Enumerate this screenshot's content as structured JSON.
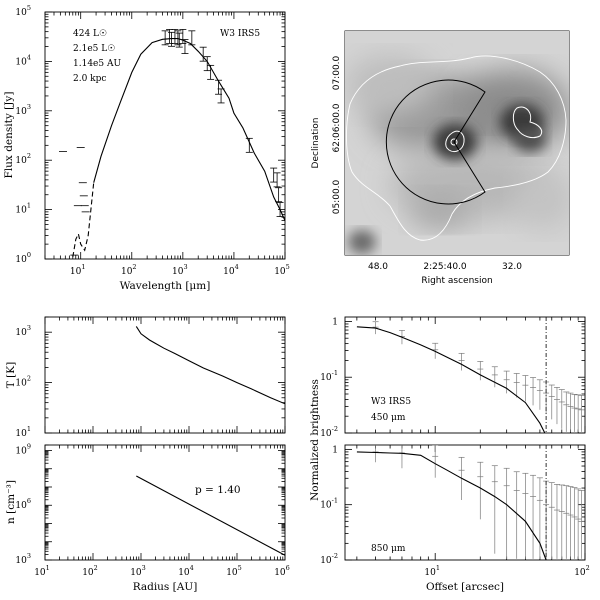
{
  "chart_data": [
    {
      "type": "line",
      "id": "sed",
      "title": "",
      "xlabel": "Wavelength [μm]",
      "ylabel": "Flux density [Jy]",
      "xscale": "log",
      "yscale": "log",
      "xlim": [
        2,
        100000
      ],
      "ylim": [
        1,
        100000
      ],
      "xticks": [
        10,
        100,
        1000,
        10000,
        100000
      ],
      "yticks": [
        1,
        10,
        100,
        1000,
        10000,
        100000
      ],
      "series": [
        {
          "style": "solid-dashed-model",
          "x": [
            7,
            8,
            9,
            10,
            12,
            14,
            18,
            25,
            40,
            60,
            100,
            150,
            250,
            400,
            600,
            800,
            1000,
            1400,
            2000,
            3000,
            5000,
            8000,
            10000,
            15000,
            25000,
            40000,
            60000,
            80000,
            100000
          ],
          "y": [
            1.1,
            2.5,
            3.2,
            2,
            1.5,
            3,
            35,
            120,
            500,
            1500,
            6000,
            14000,
            24000,
            28000,
            29000,
            29000,
            27000,
            23000,
            16000,
            10000,
            4000,
            1800,
            900,
            450,
            140,
            60,
            18,
            10,
            6
          ]
        }
      ],
      "errorbar_points": [
        {
          "x": 450,
          "y": 30000
        },
        {
          "x": 550,
          "y": 32000
        },
        {
          "x": 600,
          "y": 28000
        },
        {
          "x": 700,
          "y": 32000
        },
        {
          "x": 800,
          "y": 30000
        },
        {
          "x": 850,
          "y": 27000
        },
        {
          "x": 1000,
          "y": 32000
        },
        {
          "x": 1100,
          "y": 20000
        },
        {
          "x": 1500,
          "y": 30000
        },
        {
          "x": 2500,
          "y": 14000
        },
        {
          "x": 3000,
          "y": 9000
        },
        {
          "x": 3500,
          "y": 6000
        },
        {
          "x": 5000,
          "y": 3000
        },
        {
          "x": 5600,
          "y": 2000
        },
        {
          "x": 20000,
          "y": 200
        },
        {
          "x": 60000,
          "y": 50
        },
        {
          "x": 70000,
          "y": 40
        },
        {
          "x": 75000,
          "y": 20
        },
        {
          "x": 80000,
          "y": 10
        }
      ],
      "dash_points": [
        {
          "x": 4.5,
          "y": 150
        },
        {
          "x": 7.5,
          "y": 1.2
        },
        {
          "x": 8.8,
          "y": 12
        },
        {
          "x": 10,
          "y": 180
        },
        {
          "x": 11,
          "y": 35
        },
        {
          "x": 11.5,
          "y": 19
        },
        {
          "x": 12,
          "y": 12
        },
        {
          "x": 12.5,
          "y": 9
        }
      ]
    },
    {
      "type": "heatmap",
      "id": "map",
      "title": "",
      "xlabel": "Right ascension",
      "ylabel": "Declination",
      "xtick_labels": [
        "48.0",
        "2:25:40.0",
        "32.0"
      ],
      "ytick_labels": [
        "05:00.0",
        "62:06:00.0",
        "07:00.0"
      ],
      "grid": false
    },
    {
      "type": "line",
      "id": "temperature",
      "title": "",
      "xlabel": "",
      "ylabel": "T [K]",
      "xscale": "log",
      "yscale": "log",
      "xlim": [
        10,
        1000000
      ],
      "ylim": [
        10,
        2000
      ],
      "yticks": [
        10,
        100,
        1000
      ],
      "series": [
        {
          "x": [
            800,
            1000,
            1500,
            2000,
            3000,
            5000,
            10000,
            20000,
            50000,
            100000,
            200000,
            500000,
            1000000
          ],
          "y": [
            1300,
            930,
            700,
            600,
            480,
            380,
            270,
            195,
            135,
            100,
            75,
            50,
            38
          ]
        }
      ]
    },
    {
      "type": "line",
      "id": "density",
      "title": "",
      "xlabel": "Radius [AU]",
      "ylabel": "n [cm⁻³]",
      "xscale": "log",
      "yscale": "log",
      "xlim": [
        10,
        1000000
      ],
      "ylim": [
        1000,
        2000000000
      ],
      "xticks": [
        10,
        100,
        1000,
        10000,
        100000,
        1000000
      ],
      "yticks": [
        1000,
        1000000,
        1000000000
      ],
      "annotation": "p = 1.40",
      "series": [
        {
          "x": [
            800,
            1000000
          ],
          "y": [
            40000000,
            1800
          ]
        }
      ]
    },
    {
      "type": "line",
      "id": "radial_450",
      "title": "",
      "xlabel": "",
      "ylabel": "Normalized brightness",
      "xscale": "log",
      "yscale": "log",
      "xlim": [
        2.5,
        100
      ],
      "ylim": [
        0.01,
        1.2
      ],
      "yticks": [
        0.01,
        0.1,
        1
      ],
      "source_label": "W3 IRS5",
      "band_label": "450 μm",
      "vline_x": 55,
      "series": [
        {
          "name": "model",
          "x": [
            3,
            4,
            5,
            6,
            8,
            10,
            15,
            20,
            30,
            40,
            50,
            55
          ],
          "y": [
            0.8,
            0.76,
            0.63,
            0.52,
            0.38,
            0.29,
            0.17,
            0.11,
            0.063,
            0.035,
            0.015,
            0.009
          ]
        },
        {
          "name": "observed",
          "x": [
            4,
            6,
            10,
            15,
            20,
            25,
            30,
            35,
            40,
            45,
            50,
            55,
            60,
            65,
            70,
            75,
            80,
            85,
            90,
            95
          ],
          "y": [
            0.79,
            0.54,
            0.31,
            0.2,
            0.14,
            0.11,
            0.09,
            0.08,
            0.072,
            0.065,
            0.058,
            0.052,
            0.045,
            0.04,
            0.036,
            0.032,
            0.03,
            0.028,
            0.027,
            0.026
          ]
        }
      ]
    },
    {
      "type": "line",
      "id": "radial_850",
      "title": "",
      "xlabel": "Offset [arcsec]",
      "ylabel": "",
      "xscale": "log",
      "yscale": "log",
      "xlim": [
        2.5,
        100
      ],
      "ylim": [
        0.01,
        1.2
      ],
      "xticks": [
        10,
        100
      ],
      "yticks": [
        0.01,
        0.1,
        1
      ],
      "band_label": "850 μm",
      "vline_x": 55,
      "series": [
        {
          "name": "model",
          "x": [
            3,
            4,
            5,
            6,
            8,
            10,
            12,
            15,
            20,
            25,
            30,
            40,
            50,
            55
          ],
          "y": [
            0.9,
            0.88,
            0.86,
            0.85,
            0.78,
            0.55,
            0.42,
            0.3,
            0.2,
            0.14,
            0.1,
            0.05,
            0.02,
            0.01
          ]
        },
        {
          "name": "observed",
          "x": [
            4,
            6,
            10,
            15,
            20,
            25,
            30,
            35,
            40,
            45,
            50,
            55,
            60,
            65,
            70,
            75,
            80,
            85,
            90,
            95
          ],
          "y": [
            0.9,
            0.86,
            0.75,
            0.42,
            0.32,
            0.26,
            0.22,
            0.18,
            0.16,
            0.14,
            0.12,
            0.1,
            0.09,
            0.08,
            0.075,
            0.07,
            0.065,
            0.06,
            0.055,
            0.05
          ]
        }
      ]
    }
  ],
  "panels": {
    "sed": {
      "xlabel": "Wavelength [μm]",
      "ylabel": "Flux density [Jy]",
      "annotations": [
        "424 L☉",
        "2.1e5 L☉",
        "1.14e5 AU",
        "2.0 kpc"
      ],
      "source_label": "W3 IRS5"
    },
    "map": {
      "xlabel": "Right ascension",
      "ylabel": "Declination"
    },
    "temperature": {
      "ylabel": "T [K]"
    },
    "density": {
      "xlabel": "Radius [AU]",
      "ylabel": "n [cm⁻³]",
      "annotation": "p = 1.40"
    },
    "radial": {
      "xlabel": "Offset [arcsec]",
      "ylabel": "Normalized brightness",
      "source_label": "W3 IRS5",
      "band1_label": "450 μm",
      "band2_label": "850 μm"
    }
  }
}
